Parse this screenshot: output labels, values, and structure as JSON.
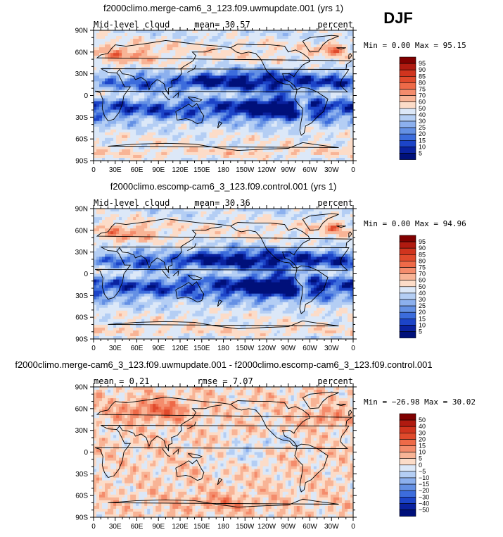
{
  "season_label": "DJF",
  "chart_data": [
    {
      "type": "heatmap",
      "title": "f2000climo.merge-cam6_3_123.f09.uwmupdate.001 (yrs 1)",
      "left_label": "Mid-level cloud",
      "center_label": "mean=  30.57",
      "right_label": "percent",
      "stats": "Min =    0.00 Max =  95.15",
      "field": "abs",
      "xticks": [
        "0",
        "30E",
        "60E",
        "90E",
        "120E",
        "150E",
        "180",
        "150W",
        "120W",
        "90W",
        "60W",
        "30W",
        "0"
      ],
      "yticks": [
        "90N",
        "60N",
        "30N",
        "0",
        "30S",
        "60S",
        "90S"
      ],
      "levels": [
        "95",
        "90",
        "85",
        "80",
        "75",
        "70",
        "60",
        "50",
        "40",
        "30",
        "25",
        "20",
        "15",
        "10",
        "5"
      ],
      "colors": [
        "#800000",
        "#b01a10",
        "#d0341e",
        "#e04a2c",
        "#ee6a48",
        "#f48c6c",
        "#f8b496",
        "#fcdcc8",
        "#dce8f8",
        "#b4cef4",
        "#8cb0ee",
        "#6490e4",
        "#3c6cdc",
        "#1c44c8",
        "#0a22a0",
        "#00107a"
      ]
    },
    {
      "type": "heatmap",
      "title": "f2000climo.escomp-cam6_3_123.f09.control.001 (yrs 1)",
      "left_label": "Mid-level cloud",
      "center_label": "mean=  30.36",
      "right_label": "percent",
      "stats": "Min =    0.00 Max =  94.96",
      "field": "abs2",
      "xticks": [
        "0",
        "30E",
        "60E",
        "90E",
        "120E",
        "150E",
        "180",
        "150W",
        "120W",
        "90W",
        "60W",
        "30W",
        "0"
      ],
      "yticks": [
        "90N",
        "60N",
        "30N",
        "0",
        "30S",
        "60S",
        "90S"
      ],
      "levels": [
        "95",
        "90",
        "85",
        "80",
        "75",
        "70",
        "60",
        "50",
        "40",
        "30",
        "25",
        "20",
        "15",
        "10",
        "5"
      ],
      "colors": [
        "#800000",
        "#b01a10",
        "#d0341e",
        "#e04a2c",
        "#ee6a48",
        "#f48c6c",
        "#f8b496",
        "#fcdcc8",
        "#dce8f8",
        "#b4cef4",
        "#8cb0ee",
        "#6490e4",
        "#3c6cdc",
        "#1c44c8",
        "#0a22a0",
        "#00107a"
      ]
    },
    {
      "type": "heatmap",
      "title": "f2000climo.merge-cam6_3_123.f09.uwmupdate.001 - f2000climo.escomp-cam6_3_123.f09.control.001",
      "left_label": "mean =    0.21",
      "center_label": "rmse =    7.07",
      "right_label": "percent",
      "stats": "Min = −26.98 Max =  30.02",
      "field": "diff",
      "xticks": [
        "0",
        "30E",
        "60E",
        "90E",
        "120E",
        "150E",
        "180",
        "150W",
        "120W",
        "90W",
        "60W",
        "30W",
        "0"
      ],
      "yticks": [
        "90N",
        "60N",
        "30N",
        "0",
        "30S",
        "60S",
        "90S"
      ],
      "levels": [
        "50",
        "40",
        "30",
        "20",
        "15",
        "10",
        "5",
        "0",
        "−5",
        "−10",
        "−15",
        "−20",
        "−30",
        "−40",
        "−50"
      ],
      "colors": [
        "#800000",
        "#b01a10",
        "#d0341e",
        "#e04a2c",
        "#ee6a48",
        "#f48c6c",
        "#f8b496",
        "#fcdcc8",
        "#dce8f8",
        "#b4cef4",
        "#8cb0ee",
        "#6490e4",
        "#3c6cdc",
        "#1c44c8",
        "#0a22a0",
        "#00107a"
      ]
    }
  ]
}
